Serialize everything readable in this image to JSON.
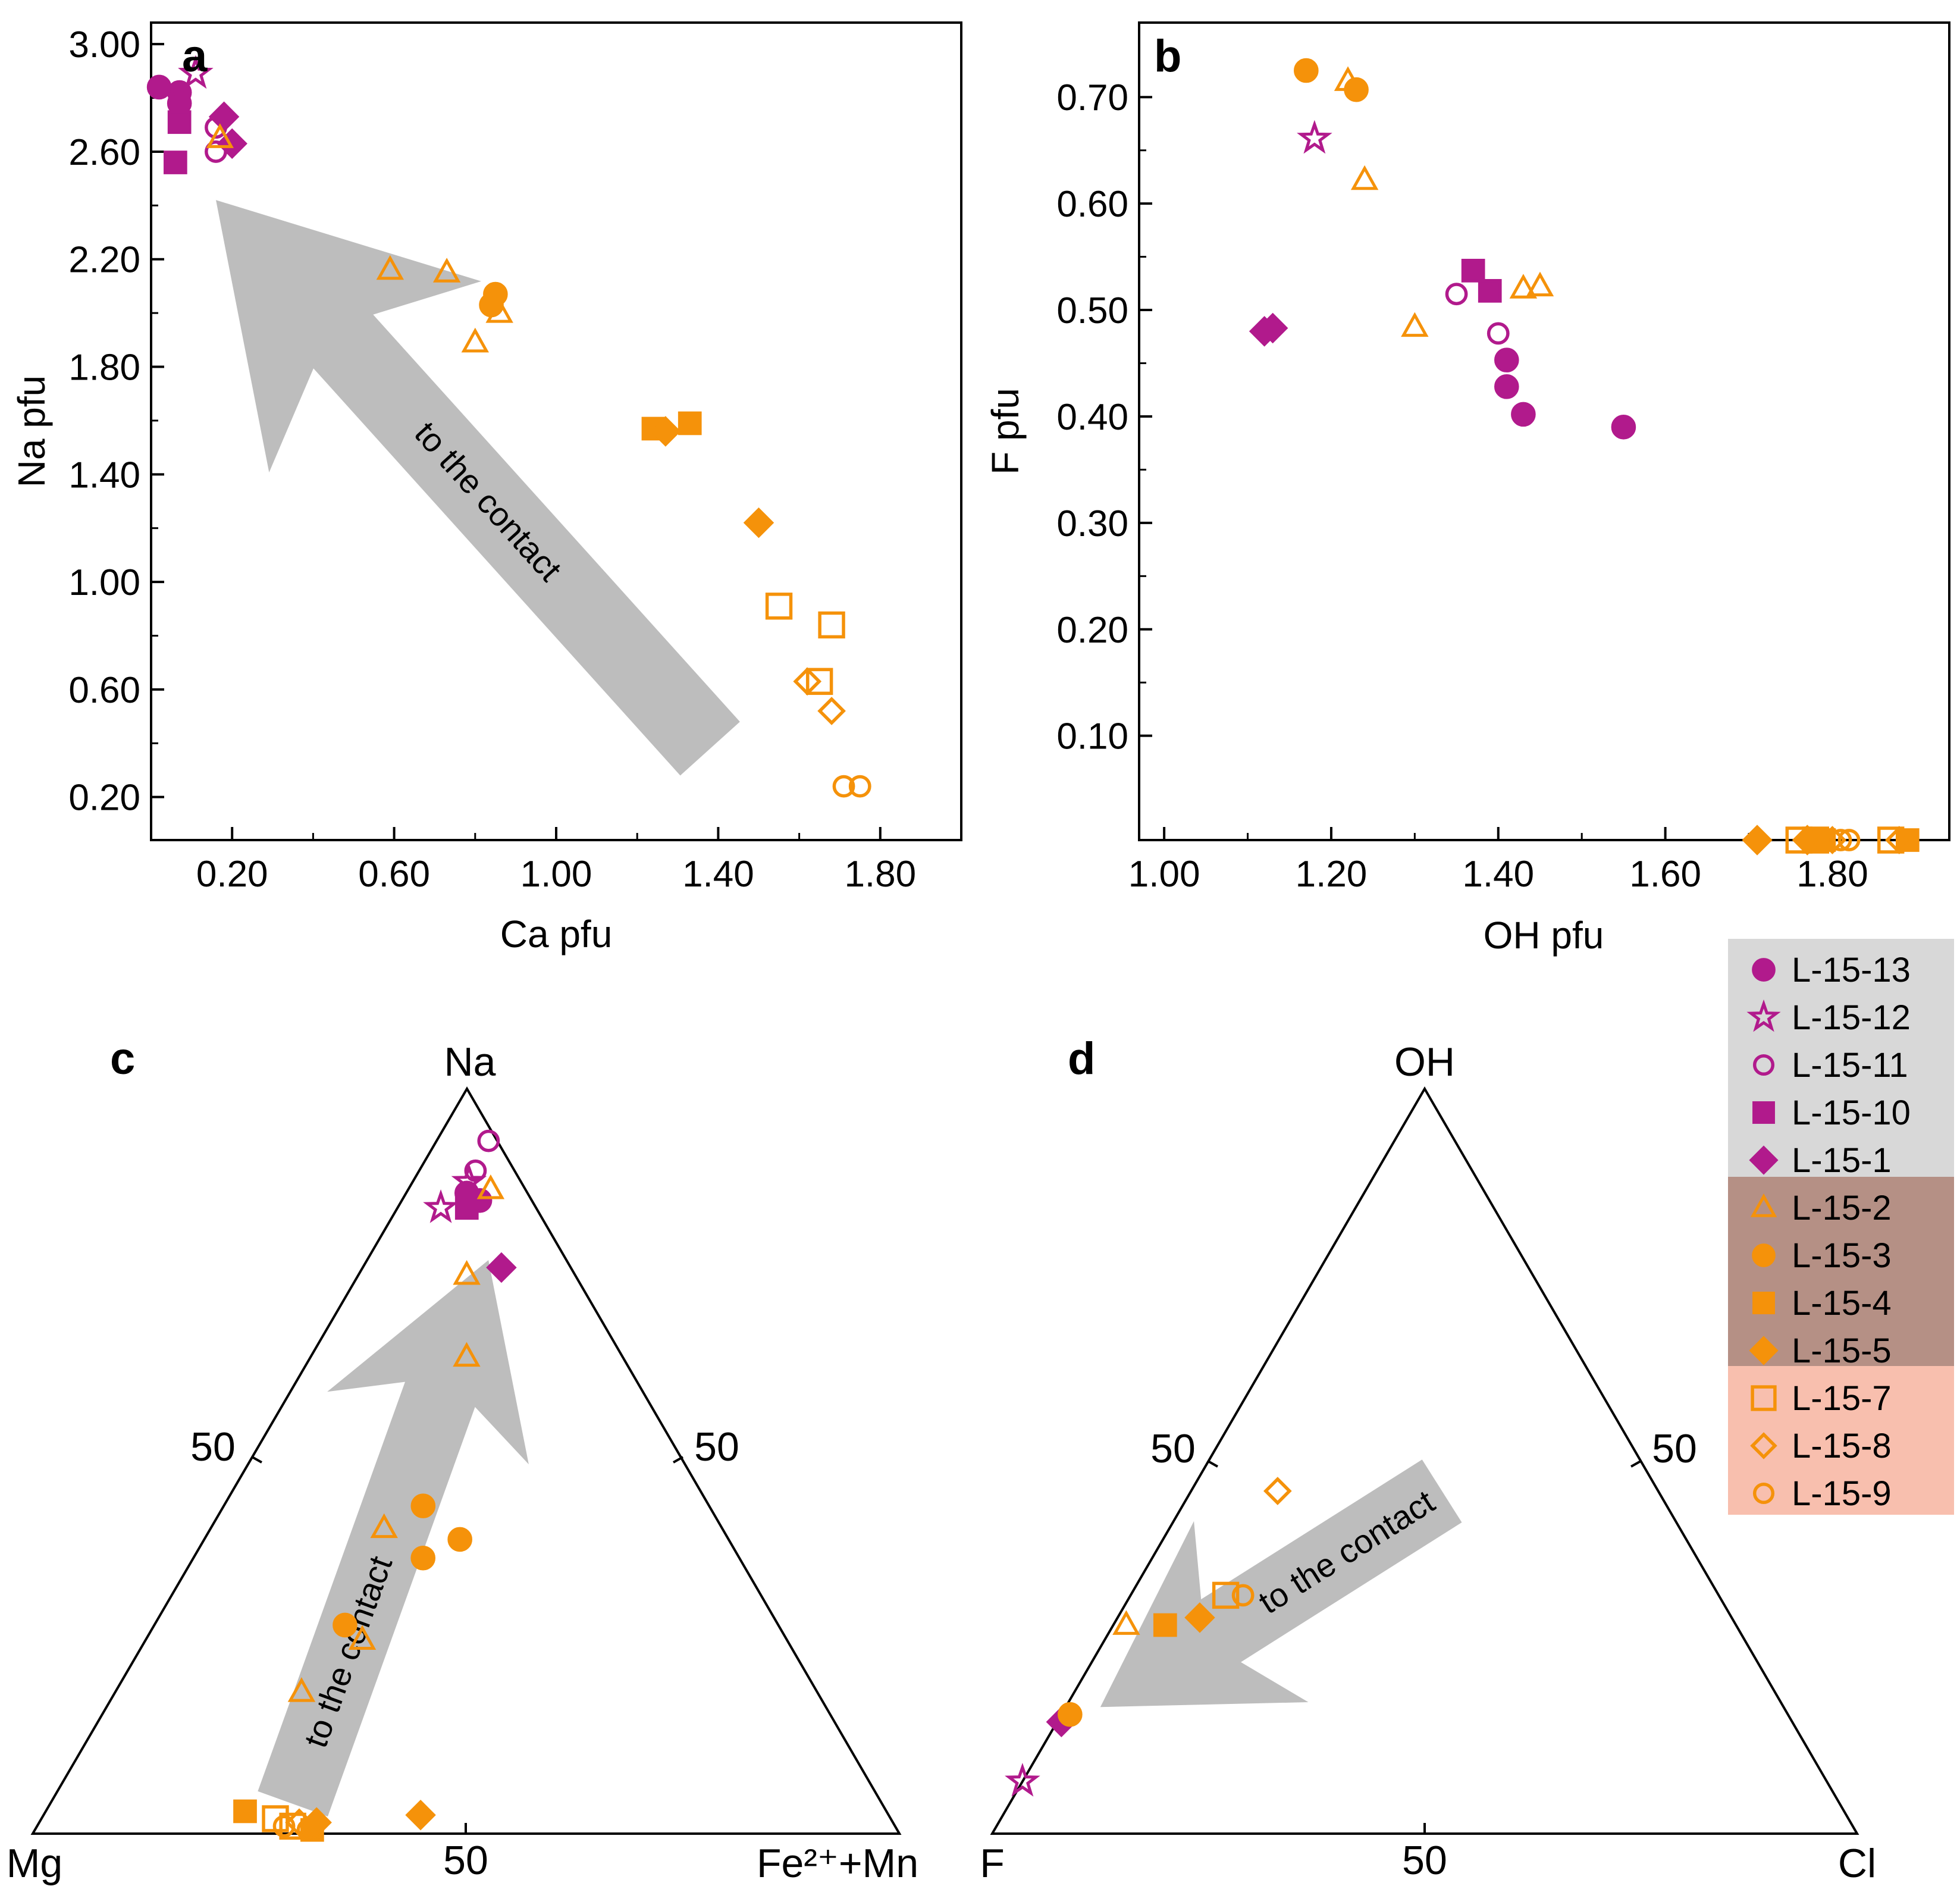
{
  "colors": {
    "purple": "#b11a8c",
    "orange": "#f5920a",
    "arrow": "#bdbdbd",
    "legend_bg_purple": "#d8d8d8",
    "legend_bg_mid": "#b59085",
    "legend_bg_light": "#f8bfae"
  },
  "legend": [
    {
      "label": "L-15-13",
      "marker": "circle",
      "filled": true,
      "color": "purple"
    },
    {
      "label": "L-15-12",
      "marker": "star",
      "filled": false,
      "color": "purple"
    },
    {
      "label": "L-15-11",
      "marker": "circle",
      "filled": false,
      "color": "purple"
    },
    {
      "label": "L-15-10",
      "marker": "square",
      "filled": true,
      "color": "purple"
    },
    {
      "label": "L-15-1",
      "marker": "diamond",
      "filled": true,
      "color": "purple"
    },
    {
      "label": "L-15-2",
      "marker": "triangle",
      "filled": false,
      "color": "orange"
    },
    {
      "label": "L-15-3",
      "marker": "circle",
      "filled": true,
      "color": "orange"
    },
    {
      "label": "L-15-4",
      "marker": "square",
      "filled": true,
      "color": "orange"
    },
    {
      "label": "L-15-5",
      "marker": "diamond",
      "filled": true,
      "color": "orange"
    },
    {
      "label": "L-15-7",
      "marker": "square",
      "filled": false,
      "color": "orange"
    },
    {
      "label": "L-15-8",
      "marker": "diamond",
      "filled": false,
      "color": "orange"
    },
    {
      "label": "L-15-9",
      "marker": "circle",
      "filled": false,
      "color": "orange"
    }
  ],
  "chart_data": [
    {
      "panel": "a",
      "type": "scatter",
      "xlabel": "Ca pfu",
      "ylabel": "Na pfu",
      "xlim": [
        0.0,
        2.0
      ],
      "ylim": [
        0.04,
        3.08
      ],
      "xticks": [
        0.2,
        0.6,
        1.0,
        1.4,
        1.8
      ],
      "xtick_labels": [
        "0.20",
        "0.60",
        "1.00",
        "1.40",
        "1.80"
      ],
      "yticks": [
        0.2,
        0.6,
        1.0,
        1.4,
        1.8,
        2.2,
        2.6,
        3.0
      ],
      "ytick_labels": [
        "0.20",
        "0.60",
        "1.00",
        "1.40",
        "1.80",
        "2.20",
        "2.60",
        "3.00"
      ],
      "arrow_label": "to the contact",
      "arrow": {
        "from": [
          1.38,
          0.38
        ],
        "to": [
          0.16,
          2.42
        ]
      },
      "points": [
        {
          "sample": "L-15-13",
          "x": 0.02,
          "y": 2.84
        },
        {
          "sample": "L-15-13",
          "x": 0.07,
          "y": 2.82
        },
        {
          "sample": "L-15-13",
          "x": 0.07,
          "y": 2.78
        },
        {
          "sample": "L-15-12",
          "x": 0.11,
          "y": 2.89
        },
        {
          "sample": "L-15-11",
          "x": 0.16,
          "y": 2.69
        },
        {
          "sample": "L-15-11",
          "x": 0.16,
          "y": 2.6
        },
        {
          "sample": "L-15-10",
          "x": 0.07,
          "y": 2.71
        },
        {
          "sample": "L-15-10",
          "x": 0.06,
          "y": 2.56
        },
        {
          "sample": "L-15-1",
          "x": 0.18,
          "y": 2.73
        },
        {
          "sample": "L-15-1",
          "x": 0.2,
          "y": 2.63
        },
        {
          "sample": "L-15-2",
          "x": 0.17,
          "y": 2.65
        },
        {
          "sample": "L-15-2",
          "x": 0.59,
          "y": 2.16
        },
        {
          "sample": "L-15-2",
          "x": 0.73,
          "y": 2.15
        },
        {
          "sample": "L-15-2",
          "x": 0.86,
          "y": 2.0
        },
        {
          "sample": "L-15-2",
          "x": 0.8,
          "y": 1.89
        },
        {
          "sample": "L-15-3",
          "x": 0.85,
          "y": 2.07
        },
        {
          "sample": "L-15-3",
          "x": 0.84,
          "y": 2.03
        },
        {
          "sample": "L-15-4",
          "x": 1.24,
          "y": 1.57
        },
        {
          "sample": "L-15-4",
          "x": 1.33,
          "y": 1.59
        },
        {
          "sample": "L-15-5",
          "x": 1.27,
          "y": 1.56
        },
        {
          "sample": "L-15-5",
          "x": 1.5,
          "y": 1.22
        },
        {
          "sample": "L-15-7",
          "x": 1.55,
          "y": 0.91
        },
        {
          "sample": "L-15-7",
          "x": 1.68,
          "y": 0.84
        },
        {
          "sample": "L-15-7",
          "x": 1.65,
          "y": 0.63
        },
        {
          "sample": "L-15-8",
          "x": 1.62,
          "y": 0.63
        },
        {
          "sample": "L-15-8",
          "x": 1.68,
          "y": 0.52
        },
        {
          "sample": "L-15-9",
          "x": 1.71,
          "y": 0.24
        },
        {
          "sample": "L-15-9",
          "x": 1.75,
          "y": 0.24
        }
      ]
    },
    {
      "panel": "b",
      "type": "scatter",
      "xlabel": "OH pfu",
      "ylabel": "F pfu",
      "xlim": [
        0.97,
        1.94
      ],
      "ylim": [
        0.002,
        0.77
      ],
      "xticks": [
        1.0,
        1.2,
        1.4,
        1.6,
        1.8
      ],
      "xtick_labels": [
        "1.00",
        "1.20",
        "1.40",
        "1.60",
        "1.80"
      ],
      "yticks": [
        0.1,
        0.2,
        0.3,
        0.4,
        0.5,
        0.6,
        0.7
      ],
      "ytick_labels": [
        "0.10",
        "0.20",
        "0.30",
        "0.40",
        "0.50",
        "0.60",
        "0.70"
      ],
      "points": [
        {
          "sample": "L-15-13",
          "x": 1.41,
          "y": 0.453
        },
        {
          "sample": "L-15-13",
          "x": 1.41,
          "y": 0.428
        },
        {
          "sample": "L-15-13",
          "x": 1.43,
          "y": 0.402
        },
        {
          "sample": "L-15-13",
          "x": 1.55,
          "y": 0.39
        },
        {
          "sample": "L-15-12",
          "x": 1.18,
          "y": 0.661
        },
        {
          "sample": "L-15-11",
          "x": 1.35,
          "y": 0.515
        },
        {
          "sample": "L-15-11",
          "x": 1.4,
          "y": 0.478
        },
        {
          "sample": "L-15-10",
          "x": 1.37,
          "y": 0.537
        },
        {
          "sample": "L-15-10",
          "x": 1.39,
          "y": 0.518
        },
        {
          "sample": "L-15-1",
          "x": 1.13,
          "y": 0.483
        },
        {
          "sample": "L-15-1",
          "x": 1.12,
          "y": 0.48
        },
        {
          "sample": "L-15-2",
          "x": 1.22,
          "y": 0.715
        },
        {
          "sample": "L-15-2",
          "x": 1.24,
          "y": 0.622
        },
        {
          "sample": "L-15-2",
          "x": 1.3,
          "y": 0.484
        },
        {
          "sample": "L-15-2",
          "x": 1.43,
          "y": 0.52
        },
        {
          "sample": "L-15-2",
          "x": 1.45,
          "y": 0.522
        },
        {
          "sample": "L-15-3",
          "x": 1.17,
          "y": 0.725
        },
        {
          "sample": "L-15-3",
          "x": 1.23,
          "y": 0.707
        },
        {
          "sample": "L-15-4",
          "x": 1.79,
          "y": 0.002
        },
        {
          "sample": "L-15-4",
          "x": 1.89,
          "y": 0.002
        },
        {
          "sample": "L-15-5",
          "x": 1.71,
          "y": 0.002
        },
        {
          "sample": "L-15-5",
          "x": 1.77,
          "y": 0.002
        },
        {
          "sample": "L-15-7",
          "x": 1.76,
          "y": 0.002
        },
        {
          "sample": "L-15-7",
          "x": 1.78,
          "y": 0.002
        },
        {
          "sample": "L-15-7",
          "x": 1.87,
          "y": 0.002
        },
        {
          "sample": "L-15-8",
          "x": 1.8,
          "y": 0.002
        },
        {
          "sample": "L-15-8",
          "x": 1.88,
          "y": 0.002
        },
        {
          "sample": "L-15-9",
          "x": 1.81,
          "y": 0.002
        },
        {
          "sample": "L-15-9",
          "x": 1.82,
          "y": 0.002
        }
      ]
    },
    {
      "panel": "c",
      "type": "ternary",
      "vertices": {
        "top": "Na",
        "left": "Mg",
        "right": "Fe²⁺+Mn"
      },
      "edge_tick_labels": [
        "50",
        "50",
        "50"
      ],
      "arrow_label": "to the contact",
      "arrow": {
        "from": [
          4,
          68,
          28
        ],
        "to": [
          77,
          9,
          14
        ]
      },
      "points": [
        {
          "sample": "L-15-11",
          "Na": 93.0,
          "Mg": 1.0,
          "Fe": 6.0
        },
        {
          "sample": "L-15-11",
          "Na": 89.0,
          "Mg": 4.5,
          "Fe": 6.5
        },
        {
          "sample": "L-15-12",
          "Na": 87.5,
          "Mg": 6.0,
          "Fe": 6.5
        },
        {
          "sample": "L-15-12",
          "Na": 84.0,
          "Mg": 11.0,
          "Fe": 5.0
        },
        {
          "sample": "L-15-13",
          "Na": 86.0,
          "Mg": 7.0,
          "Fe": 7.0
        },
        {
          "sample": "L-15-13",
          "Na": 85.0,
          "Mg": 6.0,
          "Fe": 9.0
        },
        {
          "sample": "L-15-10",
          "Na": 84.0,
          "Mg": 8.0,
          "Fe": 8.0
        },
        {
          "sample": "L-15-1",
          "Na": 76.0,
          "Mg": 8.0,
          "Fe": 16.0
        },
        {
          "sample": "L-15-2",
          "Na": 86.5,
          "Mg": 4.0,
          "Fe": 9.5
        },
        {
          "sample": "L-15-2",
          "Na": 75.0,
          "Mg": 12.5,
          "Fe": 12.5
        },
        {
          "sample": "L-15-2",
          "Na": 64.0,
          "Mg": 18.0,
          "Fe": 18.0
        },
        {
          "sample": "L-15-2",
          "Na": 41.0,
          "Mg": 39.0,
          "Fe": 20.0
        },
        {
          "sample": "L-15-2",
          "Na": 26.0,
          "Mg": 49.0,
          "Fe": 25.0
        },
        {
          "sample": "L-15-2",
          "Na": 19.0,
          "Mg": 59.5,
          "Fe": 21.5
        },
        {
          "sample": "L-15-3",
          "Na": 44.0,
          "Mg": 33.0,
          "Fe": 23.0
        },
        {
          "sample": "L-15-3",
          "Na": 37.0,
          "Mg": 36.5,
          "Fe": 26.5
        },
        {
          "sample": "L-15-3",
          "Na": 39.5,
          "Mg": 31.0,
          "Fe": 29.5
        },
        {
          "sample": "L-15-3",
          "Na": 28.0,
          "Mg": 50.0,
          "Fe": 22.0
        },
        {
          "sample": "L-15-4",
          "Na": 3.0,
          "Mg": 74.0,
          "Fe": 23.0
        },
        {
          "sample": "L-15-4",
          "Na": 0.5,
          "Mg": 67.5,
          "Fe": 32.0
        },
        {
          "sample": "L-15-5",
          "Na": 1.5,
          "Mg": 66.5,
          "Fe": 32.0
        },
        {
          "sample": "L-15-5",
          "Na": 2.5,
          "Mg": 54.0,
          "Fe": 43.5
        },
        {
          "sample": "L-15-7",
          "Na": 2.0,
          "Mg": 71.0,
          "Fe": 27.0
        },
        {
          "sample": "L-15-7",
          "Na": 1.0,
          "Mg": 69.5,
          "Fe": 29.5
        },
        {
          "sample": "L-15-8",
          "Na": 1.5,
          "Mg": 68.5,
          "Fe": 30.0
        },
        {
          "sample": "L-15-9",
          "Na": 1.0,
          "Mg": 70.5,
          "Fe": 28.5
        },
        {
          "sample": "L-15-9",
          "Na": 0.5,
          "Mg": 68.0,
          "Fe": 31.5
        }
      ]
    },
    {
      "panel": "d",
      "type": "ternary",
      "vertices": {
        "top": "OH",
        "left": "F",
        "right": "Cl"
      },
      "edge_tick_labels": [
        "50",
        "50",
        "50"
      ],
      "bottom_tick_label": "50",
      "arrow_label": "to the contact",
      "arrow": {
        "from": [
          46,
          25,
          29
        ],
        "to": [
          17,
          79,
          4
        ]
      },
      "points": [
        {
          "sample": "L-15-12",
          "OH": 7.0,
          "F": 93.0,
          "Cl": 0.0
        },
        {
          "sample": "L-15-1",
          "OH": 15.0,
          "F": 84.5,
          "Cl": 0.5
        },
        {
          "sample": "L-15-3",
          "OH": 16.0,
          "F": 83.0,
          "Cl": 1.0
        },
        {
          "sample": "L-15-2",
          "OH": 28.0,
          "F": 70.5,
          "Cl": 1.5
        },
        {
          "sample": "L-15-4",
          "OH": 28.0,
          "F": 66.0,
          "Cl": 6.0
        },
        {
          "sample": "L-15-5",
          "OH": 29.0,
          "F": 61.5,
          "Cl": 9.5
        },
        {
          "sample": "L-15-7",
          "OH": 32.0,
          "F": 57.0,
          "Cl": 11.0
        },
        {
          "sample": "L-15-9",
          "OH": 32.0,
          "F": 55.0,
          "Cl": 13.0
        },
        {
          "sample": "L-15-8",
          "OH": 46.0,
          "F": 44.0,
          "Cl": 10.0
        }
      ]
    }
  ]
}
